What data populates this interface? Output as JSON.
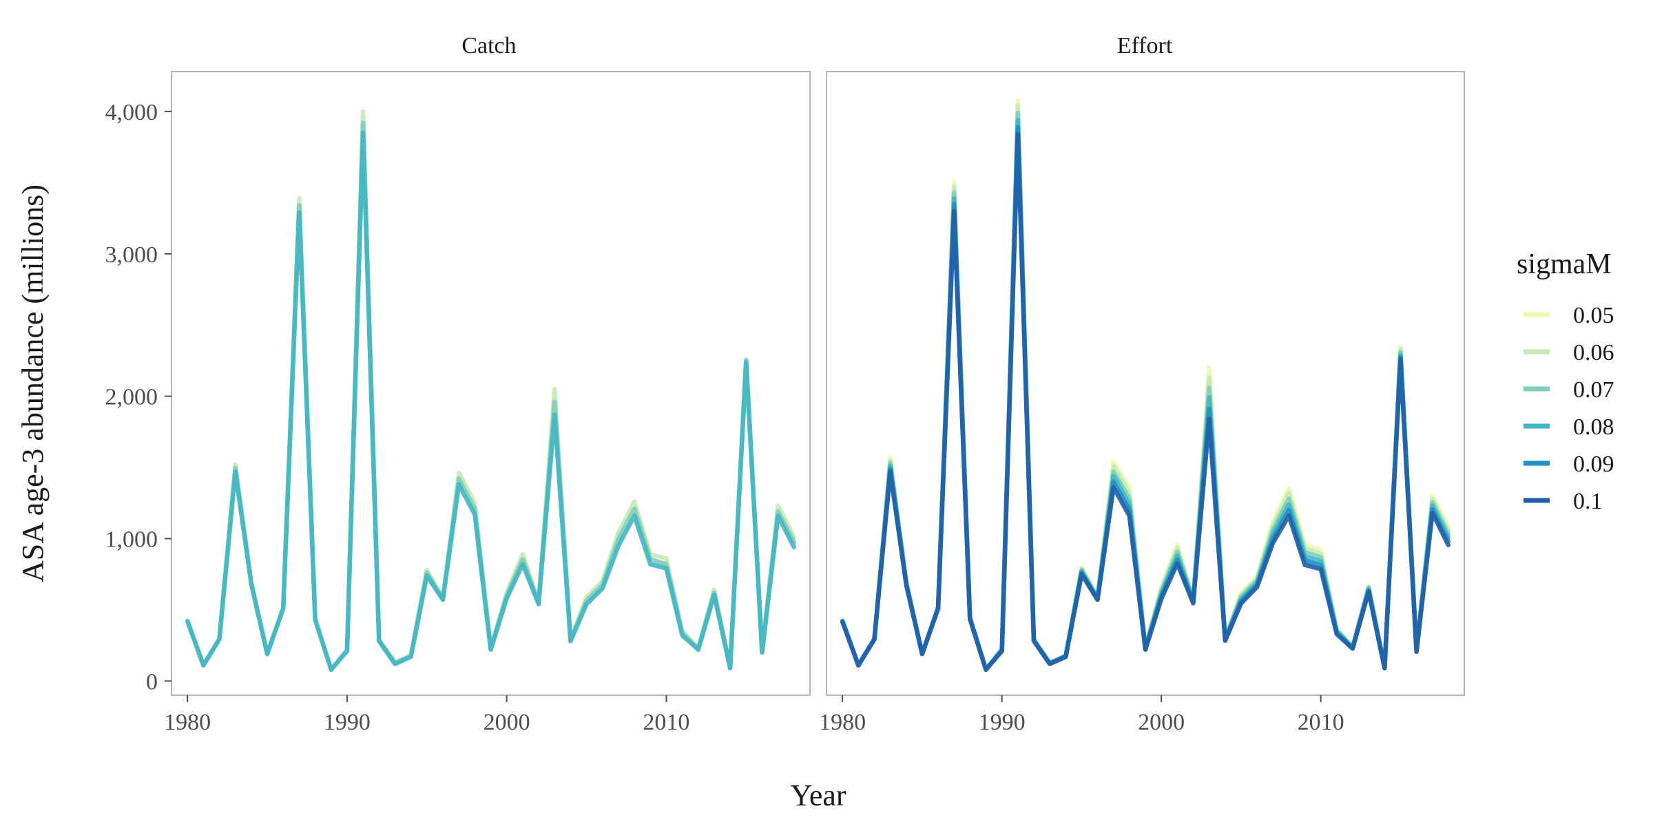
{
  "chart_data": {
    "type": "line",
    "xlabel": "Year",
    "ylabel": "ASA age-3 abundance (millions)",
    "xlim": [
      1979,
      2019
    ],
    "ylim": [
      -100,
      4280
    ],
    "xticks": [
      1980,
      1990,
      2000,
      2010
    ],
    "xtick_labels": [
      "1980",
      "1990",
      "2000",
      "2010"
    ],
    "yticks": [
      0,
      1000,
      2000,
      3000,
      4000
    ],
    "ytick_labels": [
      "0",
      "1,000",
      "2,000",
      "3,000",
      "4,000"
    ],
    "grid": false,
    "legend": {
      "title": "sigmaM",
      "placement": "right",
      "entries": [
        "0.05",
        "0.06",
        "0.07",
        "0.08",
        "0.09",
        "0.1"
      ]
    },
    "series_colors": [
      "#edf8b1",
      "#c7e9b4",
      "#7fcdbb",
      "#41b6c4",
      "#1d91c0",
      "#225ea8"
    ],
    "years": [
      1980,
      1981,
      1982,
      1983,
      1984,
      1985,
      1986,
      1987,
      1988,
      1989,
      1990,
      1991,
      1992,
      1993,
      1994,
      1995,
      1996,
      1997,
      1998,
      1999,
      2000,
      2001,
      2002,
      2003,
      2004,
      2005,
      2006,
      2007,
      2008,
      2009,
      2010,
      2011,
      2012,
      2013,
      2014,
      2015,
      2016,
      2017,
      2018
    ],
    "panels": [
      {
        "title": "Catch",
        "series": [
          {
            "name": "0.06",
            "values": [
              420,
              110,
              295,
              1520,
              690,
              190,
              510,
              3390,
              440,
              80,
              220,
              4000,
              290,
              130,
              180,
              780,
              580,
              1460,
              1250,
              230,
              620,
              890,
              560,
              2050,
              290,
              590,
              700,
              1040,
              1260,
              890,
              860,
              350,
              230,
              640,
              95,
              2260,
              210,
              1230,
              1010
            ]
          },
          {
            "name": "0.07",
            "values": [
              420,
              110,
              295,
              1495,
              685,
              190,
              510,
              3340,
              435,
              80,
              215,
              3920,
              285,
              125,
              175,
              760,
              575,
              1420,
              1210,
              225,
              600,
              855,
              550,
              1960,
              285,
              565,
              675,
              995,
              1210,
              855,
              820,
              335,
              225,
              620,
              93,
              2250,
              205,
              1190,
              975
            ]
          },
          {
            "name": "0.08",
            "values": [
              420,
              110,
              295,
              1470,
              680,
              190,
              510,
              3290,
              430,
              80,
              210,
              3850,
              280,
              120,
              170,
              740,
              570,
              1380,
              1170,
              220,
              580,
              820,
              540,
              1870,
              280,
              540,
              650,
              950,
              1160,
              820,
              790,
              320,
              220,
              605,
              90,
              2240,
              200,
              1160,
              940
            ]
          }
        ]
      },
      {
        "title": "Effort",
        "series": [
          {
            "name": "0.05",
            "values": [
              430,
              110,
              300,
              1570,
              700,
              190,
              520,
              3510,
              450,
              80,
              230,
              4080,
              295,
              130,
              180,
              800,
              590,
              1540,
              1360,
              240,
              660,
              960,
              580,
              2200,
              300,
              620,
              730,
              1120,
              1350,
              960,
              920,
              370,
              240,
              670,
              95,
              2350,
              220,
              1300,
              1080
            ]
          },
          {
            "name": "0.06",
            "values": [
              425,
              110,
              298,
              1550,
              695,
              190,
              518,
              3470,
              447,
              80,
              226,
              4040,
              293,
              128,
              178,
              790,
              585,
              1510,
              1320,
              236,
              645,
              935,
              574,
              2130,
              297,
              605,
              718,
              1090,
              1320,
              935,
              895,
              362,
              238,
              662,
              94,
              2330,
              217,
              1280,
              1055
            ]
          },
          {
            "name": "0.07",
            "values": [
              422,
              110,
              296,
              1530,
              690,
              190,
              516,
              3430,
              443,
              80,
              222,
              3990,
              290,
              126,
              176,
              780,
              581,
              1470,
              1280,
              232,
              628,
              908,
              567,
              2060,
              293,
              590,
              705,
              1060,
              1280,
              905,
              868,
              354,
              236,
              654,
              93,
              2310,
              214,
              1255,
              1030
            ]
          },
          {
            "name": "0.08",
            "values": [
              420,
              110,
              295,
              1510,
              685,
              190,
              513,
              3390,
              440,
              80,
              218,
              3940,
              287,
              124,
              174,
              770,
              578,
              1440,
              1240,
              228,
              612,
              880,
              560,
              1990,
              290,
              575,
              690,
              1030,
              1240,
              875,
              840,
              346,
              233,
              645,
              92,
              2290,
              211,
              1230,
              1005
            ]
          },
          {
            "name": "0.09",
            "values": [
              418,
              110,
              294,
              1490,
              680,
              190,
              511,
              3350,
              437,
              80,
              215,
              3890,
              284,
              122,
              172,
              760,
              574,
              1400,
              1200,
              224,
              595,
              852,
              553,
              1910,
              287,
              560,
              675,
              1000,
              1200,
              845,
              812,
              338,
              230,
              636,
              91,
              2275,
              208,
              1205,
              980
            ]
          },
          {
            "name": "0.1",
            "values": [
              415,
              110,
              292,
              1470,
              675,
              190,
              508,
              3300,
              433,
              80,
              211,
              3840,
              281,
              120,
              170,
              750,
              570,
              1360,
              1160,
              220,
              578,
              825,
              546,
              1840,
              283,
              545,
              660,
              970,
              1160,
              815,
              785,
              330,
              228,
              628,
              90,
              2260,
              205,
              1180,
              955
            ]
          }
        ]
      }
    ]
  }
}
